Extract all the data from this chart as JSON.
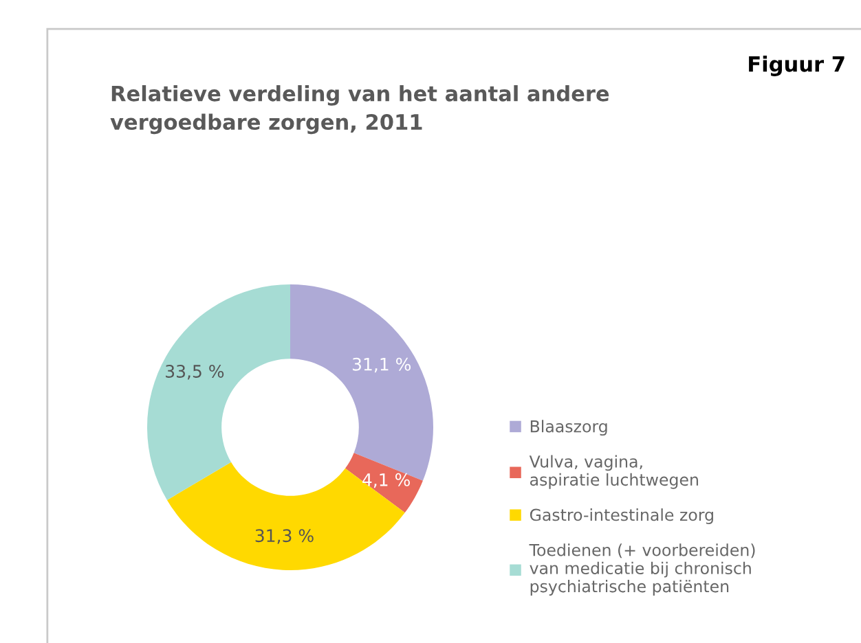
{
  "chart_data": {
    "type": "donut",
    "title": "Relatieve verdeling van het aantal andere\nvergoedbare zorgen, 2011",
    "annotations": [
      "Figuur 7"
    ],
    "categories": [
      "Blaaszorg",
      "Vulva, vagina,\naspiratie luchtwegen",
      "Gastro-intestinale zorg",
      "Toedienen (+ voorbereiden)\nvan medicatie bij chronisch\npsychiatrische patiënten"
    ],
    "values": [
      31.1,
      4.1,
      31.3,
      33.5
    ],
    "colors": [
      "#aeaad6",
      "#e8685a",
      "#ffd900",
      "#a6dcd4"
    ],
    "value_labels": [
      "31,1 %",
      "4,1 %",
      "31,3 %",
      "33,5 %"
    ],
    "legend": "right"
  }
}
